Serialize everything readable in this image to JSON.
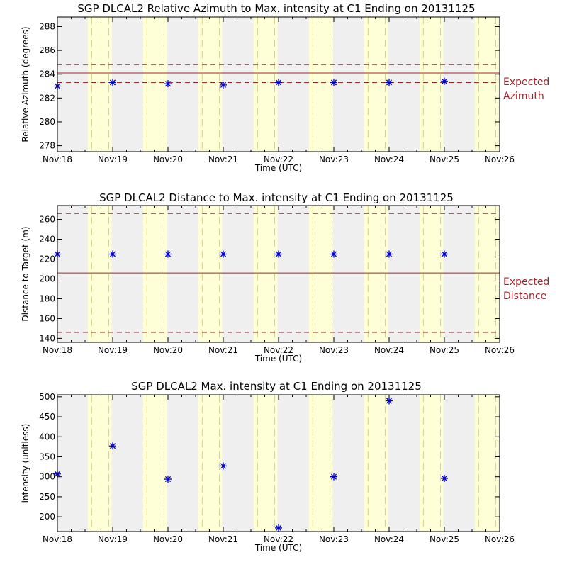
{
  "colors": {
    "day_band": "#efefef",
    "night_band": "#ffffd7",
    "dashed_marker": "#ffd700",
    "expected_line": "#a0262a",
    "marker": "#0000cc"
  },
  "x_tick_labels": [
    "Nov:18",
    "Nov:19",
    "Nov:20",
    "Nov:21",
    "Nov:22",
    "Nov:23",
    "Nov:24",
    "Nov:25",
    "Nov:26"
  ],
  "x_axis_label": "Time (UTC)",
  "chart_data": [
    {
      "type": "scatter",
      "title": "SGP DLCAL2 Relative Azimuth to Max. intensity at C1 Ending on 20131125",
      "xlabel": "Time (UTC)",
      "ylabel": "Relative Azimuth (degrees)",
      "xlim": [
        18,
        26
      ],
      "ylim": [
        277.5,
        288.8
      ],
      "yticks": [
        278,
        280,
        282,
        284,
        286,
        288
      ],
      "x": [
        18.0,
        19.0,
        20.0,
        21.0,
        22.0,
        23.0,
        24.0,
        25.0
      ],
      "values": [
        283.0,
        283.3,
        283.2,
        283.1,
        283.3,
        283.3,
        283.3,
        283.4
      ],
      "expected": 284.1,
      "expected_band": [
        283.3,
        284.8
      ],
      "annotation": [
        "Expected",
        "Azimuth"
      ]
    },
    {
      "type": "scatter",
      "title": "SGP DLCAL2 Distance to Max. intensity at C1 Ending on 20131125",
      "xlabel": "Time (UTC)",
      "ylabel": "Distance to Target (m)",
      "xlim": [
        18,
        26
      ],
      "ylim": [
        136,
        274
      ],
      "yticks": [
        140,
        160,
        180,
        200,
        220,
        240,
        260
      ],
      "x": [
        18.0,
        19.0,
        20.0,
        21.0,
        22.0,
        23.0,
        24.0,
        25.0
      ],
      "values": [
        225,
        225,
        225,
        225,
        225,
        225,
        225,
        225
      ],
      "expected": 206,
      "expected_band": [
        146,
        266
      ],
      "annotation": [
        "Expected",
        "Distance"
      ]
    },
    {
      "type": "scatter",
      "title": "SGP DLCAL2 Max. intensity at C1 Ending on 20131125",
      "xlabel": "Time (UTC)",
      "ylabel": "intensity (unitless)",
      "xlim": [
        18,
        26
      ],
      "ylim": [
        163,
        505
      ],
      "yticks": [
        200,
        250,
        300,
        350,
        400,
        450,
        500
      ],
      "x": [
        18.0,
        19.0,
        20.0,
        21.0,
        22.0,
        23.0,
        24.0,
        25.0
      ],
      "values": [
        307,
        377,
        294,
        327,
        172,
        300,
        490,
        296
      ]
    }
  ]
}
